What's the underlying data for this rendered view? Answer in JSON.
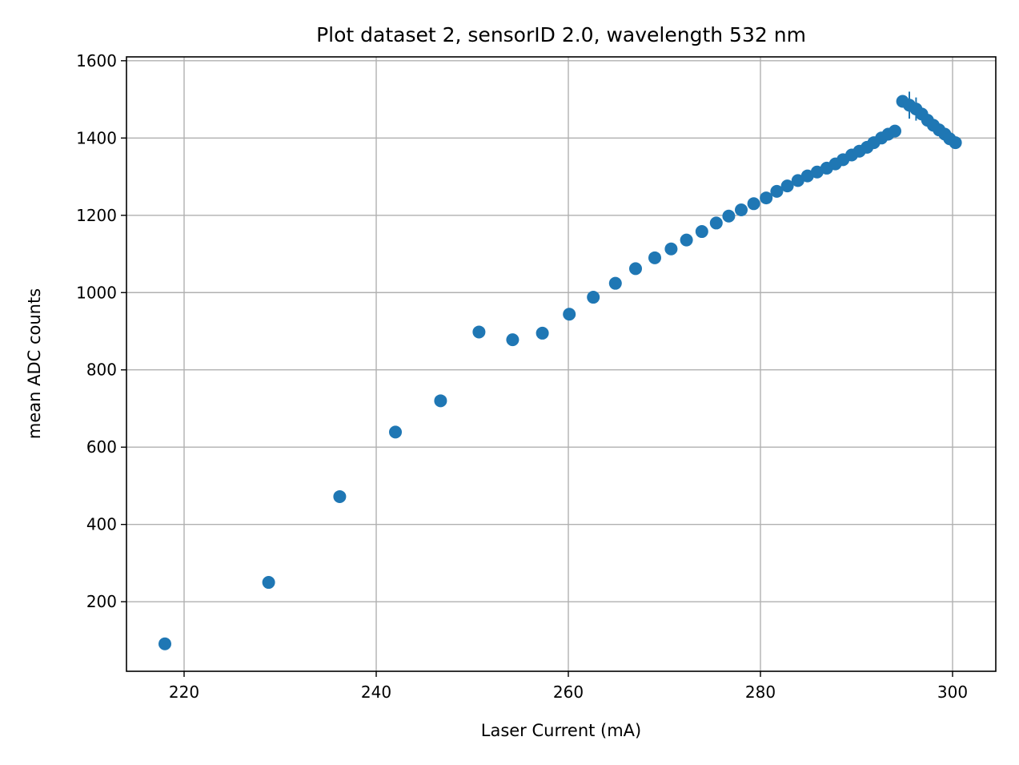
{
  "chart_data": {
    "type": "scatter",
    "title": "Plot dataset 2, sensorID 2.0, wavelength 532 nm",
    "xlabel": "Laser Current (mA)",
    "ylabel": "mean ADC counts",
    "xlim": [
      214,
      304.5
    ],
    "ylim": [
      20,
      1610
    ],
    "xticks": [
      220,
      240,
      260,
      280,
      300
    ],
    "yticks": [
      200,
      400,
      600,
      800,
      1000,
      1200,
      1400,
      1600
    ],
    "grid": true,
    "color": "#1f77b4",
    "series": [
      {
        "x": [
          218.0,
          228.8,
          236.2,
          242.0,
          246.7,
          250.7,
          254.2,
          257.3,
          260.1,
          262.6,
          264.9,
          267.0,
          269.0,
          270.7,
          272.3,
          273.9,
          275.4,
          276.7,
          278.0,
          279.3,
          280.6,
          281.7,
          282.8,
          283.9,
          284.9,
          285.9,
          286.9,
          287.8,
          288.6,
          289.5,
          290.3,
          291.1,
          291.8,
          292.6,
          293.3,
          294.0,
          294.8,
          295.5,
          296.2,
          296.8,
          297.4,
          298.0,
          298.6,
          299.2,
          299.7,
          300.3
        ],
        "y": [
          91,
          250,
          472,
          639,
          720,
          898,
          878,
          895,
          944,
          988,
          1024,
          1062,
          1090,
          1113,
          1136,
          1158,
          1180,
          1198,
          1214,
          1230,
          1245,
          1262,
          1276,
          1290,
          1302,
          1312,
          1322,
          1333,
          1344,
          1356,
          1366,
          1376,
          1388,
          1400,
          1410,
          1418,
          1495,
          1485,
          1475,
          1462,
          1446,
          1433,
          1421,
          1410,
          1398,
          1388
        ],
        "yerr_extent": [
          0,
          0,
          0,
          0,
          0,
          0,
          0,
          0,
          0,
          0,
          0,
          0,
          0,
          0,
          0,
          0,
          0,
          0,
          0,
          0,
          0,
          0,
          0,
          0,
          0,
          0,
          0,
          0,
          0,
          0,
          0,
          0,
          0,
          0,
          0,
          0,
          0,
          35,
          30,
          0,
          0,
          0,
          0,
          0,
          0,
          0
        ]
      }
    ]
  }
}
